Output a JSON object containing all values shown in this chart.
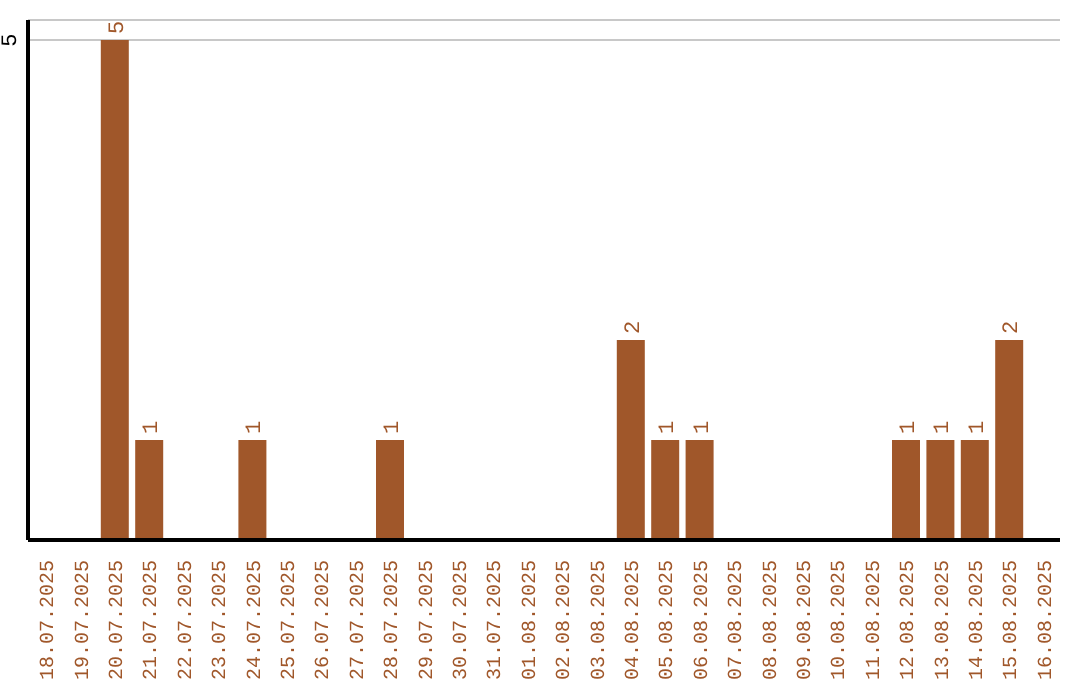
{
  "chart_data": {
    "type": "bar",
    "categories": [
      "18.07.2025",
      "19.07.2025",
      "20.07.2025",
      "21.07.2025",
      "22.07.2025",
      "23.07.2025",
      "24.07.2025",
      "25.07.2025",
      "26.07.2025",
      "27.07.2025",
      "28.07.2025",
      "29.07.2025",
      "30.07.2025",
      "31.07.2025",
      "01.08.2025",
      "02.08.2025",
      "03.08.2025",
      "04.08.2025",
      "05.08.2025",
      "06.08.2025",
      "07.08.2025",
      "08.08.2025",
      "09.08.2025",
      "10.08.2025",
      "11.08.2025",
      "12.08.2025",
      "13.08.2025",
      "14.08.2025",
      "15.08.2025",
      "16.08.2025"
    ],
    "values": [
      0,
      0,
      5,
      1,
      0,
      0,
      1,
      0,
      0,
      0,
      1,
      0,
      0,
      0,
      0,
      0,
      0,
      2,
      1,
      1,
      0,
      0,
      0,
      0,
      0,
      1,
      1,
      1,
      2,
      0
    ],
    "value_labels": [
      null,
      null,
      "5",
      "1",
      null,
      null,
      "1",
      null,
      null,
      null,
      "1",
      null,
      null,
      null,
      null,
      null,
      null,
      "2",
      "1",
      "1",
      null,
      null,
      null,
      null,
      null,
      "1",
      "1",
      "1",
      "2",
      null
    ],
    "color": "#a0572a",
    "ylim": [
      0,
      5.2
    ],
    "yticks": [
      5
    ],
    "grid": "y"
  }
}
